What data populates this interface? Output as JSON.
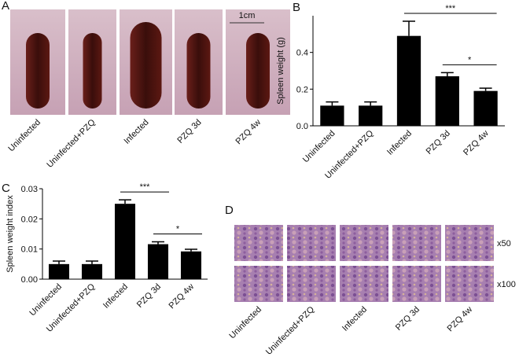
{
  "panels": {
    "A": {
      "label": "A",
      "photos": [
        "Uninfected",
        "Uninfected+PZQ",
        "Infected",
        "PZQ 3d",
        "PZQ 4w"
      ],
      "scale_bar": "1cm"
    },
    "D": {
      "label": "D",
      "photos": [
        "Uninfected",
        "Uninfected+PZQ",
        "Infected",
        "PZQ 3d",
        "PZQ 4w"
      ],
      "rows": [
        "x50",
        "x100"
      ]
    }
  },
  "chart_data": [
    {
      "type": "bar",
      "panel_label": "B",
      "y_label": "Spleen weight (g)",
      "categories": [
        "Uninfected",
        "Uninfected+PZQ",
        "Infected",
        "PZQ 3d",
        "PZQ 4w"
      ],
      "values": [
        0.11,
        0.11,
        0.49,
        0.27,
        0.19
      ],
      "errors": [
        0.02,
        0.02,
        0.08,
        0.02,
        0.015
      ],
      "color": "#000000",
      "ylim": [
        0,
        0.6
      ],
      "yticks": [
        {
          "value": 0,
          "label": "0.0"
        },
        0.2,
        0.4
      ],
      "annotations": [
        {
          "text": "***",
          "between": [
            "Infected",
            "PZQ 4w"
          ]
        },
        {
          "text": "*",
          "between": [
            "PZQ 3d",
            "PZQ 4w"
          ]
        }
      ]
    },
    {
      "type": "bar",
      "panel_label": "C",
      "y_label": "Spleen weight index",
      "categories": [
        "Uninfected",
        "Uninfected+PZQ",
        "Infected",
        "PZQ 3d",
        "PZQ 4w"
      ],
      "values": [
        0.005,
        0.005,
        0.025,
        0.0116,
        0.0092
      ],
      "errors": [
        0.001,
        0.001,
        0.0013,
        0.0008,
        0.0007
      ],
      "color": "#000000",
      "ylim": [
        0,
        0.03
      ],
      "yticks": [
        {
          "value": 0,
          "label": "0.00"
        },
        0.01,
        0.02,
        0.03
      ],
      "annotations": [
        {
          "text": "***",
          "between": [
            "Infected",
            "PZQ 3d"
          ]
        },
        {
          "text": "*",
          "between": [
            "PZQ 3d",
            "PZQ 4w"
          ]
        }
      ]
    }
  ]
}
